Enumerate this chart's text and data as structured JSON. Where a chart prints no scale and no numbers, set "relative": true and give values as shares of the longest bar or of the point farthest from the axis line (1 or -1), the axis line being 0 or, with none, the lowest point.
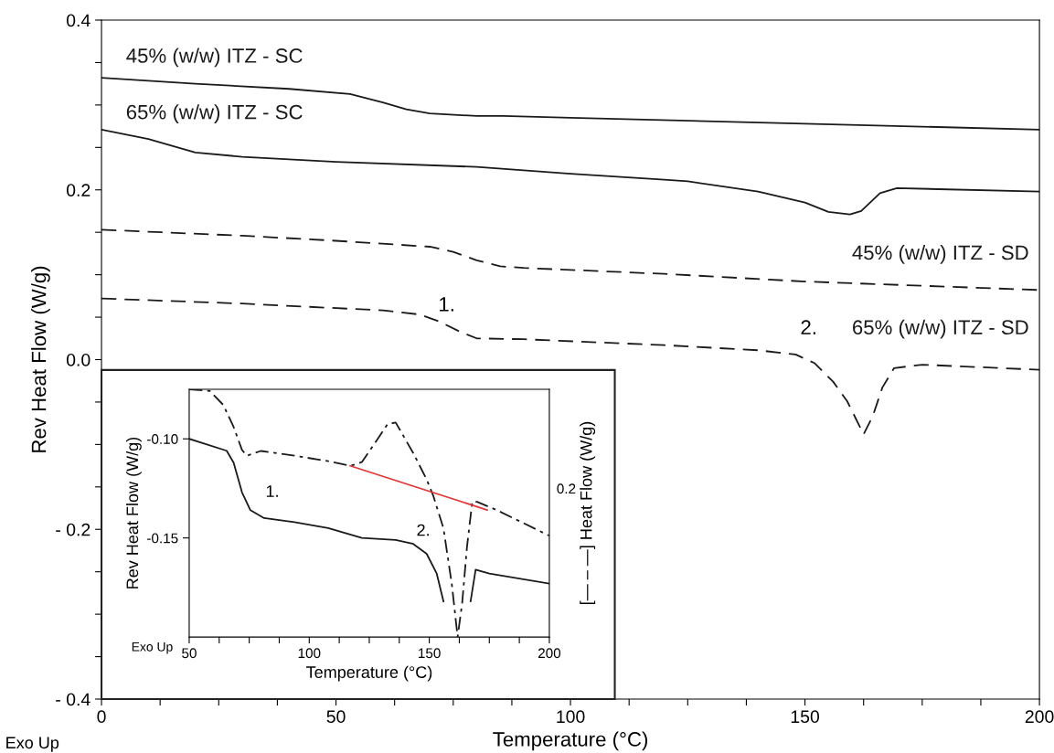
{
  "chart_data": [
    {
      "type": "line",
      "xlabel": "Temperature (°C)",
      "ylabel": "Rev Heat Flow (W/g)",
      "xlim": [
        0,
        200
      ],
      "ylim": [
        -0.4,
        0.4
      ],
      "xticks": [
        0,
        {
          "value": 12.5,
          "label": null
        },
        {
          "value": 25,
          "label": null
        },
        {
          "value": 37.5,
          "label": null
        },
        50,
        {
          "value": 62.5,
          "label": null
        },
        {
          "value": 75,
          "label": null
        },
        {
          "value": 87.5,
          "label": null
        },
        100,
        {
          "value": 112.5,
          "label": null
        },
        {
          "value": 125,
          "label": null
        },
        {
          "value": 137.5,
          "label": null
        },
        150,
        {
          "value": 162.5,
          "label": null
        },
        {
          "value": 175,
          "label": null
        },
        {
          "value": 187.5,
          "label": null
        },
        200
      ],
      "yticks": [
        {
          "value": -0.4,
          "label": "- 0.4"
        },
        {
          "value": -0.35,
          "label": null
        },
        {
          "value": -0.3,
          "label": null
        },
        {
          "value": -0.25,
          "label": null
        },
        {
          "value": -0.2,
          "label": "- 0.2"
        },
        {
          "value": -0.15,
          "label": null
        },
        {
          "value": -0.1,
          "label": null
        },
        {
          "value": -0.05,
          "label": null
        },
        {
          "value": 0,
          "label": "0.0"
        },
        {
          "value": 0.05,
          "label": null
        },
        {
          "value": 0.1,
          "label": null
        },
        {
          "value": 0.15,
          "label": null
        },
        0.2,
        {
          "value": 0.25,
          "label": null
        },
        {
          "value": 0.3,
          "label": null
        },
        {
          "value": 0.35,
          "label": null
        },
        0.4
      ],
      "series": [
        {
          "name": "45% (w/w) ITZ - SC",
          "color": "#1a1a1a",
          "line_style": "solid",
          "x": [
            0,
            20,
            40,
            53,
            60,
            65,
            70,
            80,
            85.6,
            100,
            150,
            200
          ],
          "values": [
            0.332,
            0.325,
            0.319,
            0.313,
            0.303,
            0.295,
            0.29,
            0.287,
            0.287,
            0.285,
            0.278,
            0.271
          ]
        },
        {
          "name": "65% (w/w) ITZ - SC",
          "color": "#1a1a1a",
          "line_style": "solid",
          "x": [
            0,
            10,
            20,
            30,
            50,
            80,
            100,
            120,
            125,
            140,
            150,
            155,
            159.6,
            162,
            166,
            169.6,
            200
          ],
          "values": [
            0.271,
            0.26,
            0.244,
            0.239,
            0.233,
            0.227,
            0.219,
            0.212,
            0.21,
            0.198,
            0.185,
            0.174,
            0.171,
            0.175,
            0.196,
            0.202,
            0.198
          ]
        },
        {
          "name": "45% (w/w) ITZ - SD",
          "color": "#1a1a1a",
          "line_style": "dashed",
          "x": [
            0,
            30,
            50,
            70,
            75,
            80,
            85,
            90,
            120,
            150,
            200
          ],
          "values": [
            0.153,
            0.146,
            0.14,
            0.133,
            0.127,
            0.117,
            0.11,
            0.108,
            0.101,
            0.092,
            0.082
          ]
        },
        {
          "name": "65% (w/w) ITZ - SD",
          "color": "#1a1a1a",
          "line_style": "dashed",
          "x": [
            0,
            30,
            60,
            68,
            72,
            76,
            80,
            90,
            120,
            140,
            148,
            152,
            156,
            159,
            162.5,
            164.5,
            166.5,
            169,
            175,
            200
          ],
          "values": [
            0.072,
            0.066,
            0.058,
            0.053,
            0.045,
            0.034,
            0.025,
            0.024,
            0.017,
            0.011,
            0.006,
            -0.004,
            -0.026,
            -0.049,
            -0.088,
            -0.066,
            -0.033,
            -0.01,
            -0.006,
            -0.012
          ]
        }
      ],
      "annotations": [
        "1.",
        "2.",
        "Exo Up"
      ]
    },
    {
      "type": "line",
      "xlabel": "Temperature (°C)",
      "ylabel": "Rev Heat Flow (W/g)",
      "xlim": [
        50,
        200
      ],
      "ylim": [
        -0.2,
        -0.075
      ],
      "xticks": [
        50,
        {
          "value": 62.5,
          "label": null
        },
        {
          "value": 75,
          "label": null
        },
        {
          "value": 87.5,
          "label": null
        },
        100,
        {
          "value": 112.5,
          "label": null
        },
        {
          "value": 125,
          "label": null
        },
        {
          "value": 137.5,
          "label": null
        },
        150,
        {
          "value": 162.5,
          "label": null
        },
        {
          "value": 175,
          "label": null
        },
        {
          "value": 187.5,
          "label": null
        },
        200
      ],
      "yticks": [
        {
          "value": -0.1,
          "label": "-0.10"
        },
        {
          "value": -0.15,
          "label": "-0.15"
        }
      ],
      "series": [
        {
          "color": "#1a1a1a",
          "line_style": "solid",
          "x": [
            50,
            65.6,
            68.5,
            72,
            75.5,
            81.2,
            93.8,
            107.9,
            121.9,
            136,
            143.3,
            148.9,
            153.1,
            155.9,
            null,
            167.2,
            169.3,
            175,
            200
          ],
          "values": [
            -0.1,
            -0.106,
            -0.112,
            -0.127,
            -0.136,
            -0.14,
            -0.142,
            -0.145,
            -0.15,
            -0.151,
            -0.153,
            -0.158,
            -0.168,
            -0.182,
            null,
            -0.182,
            -0.166,
            -0.168,
            -0.173
          ]
        }
      ],
      "annotations": [
        "1.",
        "2.",
        "Exo Up"
      ]
    },
    {
      "type": "line",
      "relative": true,
      "y2label": "[— – —] Heat Flow (W/g)",
      "xlim": [
        50,
        200
      ],
      "series": [
        {
          "color": "#1a1a1a",
          "line_style": "dashdot",
          "x": [
            50,
            58.6,
            64.2,
            68.5,
            72,
            74.1,
            79.8,
            93.8,
            107.9,
            117.1,
            121.9,
            127.7,
            132.6,
            136,
            143.3,
            148.9,
            151.6,
            155.9,
            159.4,
            161.8,
            163.7,
            165.7,
            167.9,
            169.9,
            178,
            200
          ],
          "values": [
            1.0,
            0.993,
            0.937,
            0.848,
            0.755,
            0.732,
            0.751,
            0.732,
            0.71,
            0.691,
            0.706,
            0.788,
            0.859,
            0.866,
            0.743,
            0.636,
            0.572,
            0.439,
            0.212,
            0,
            0.138,
            0.364,
            0.546,
            0.546,
            0.513,
            0.409
          ]
        },
        {
          "color": "#e03a3a",
          "line_style": "solid",
          "x": [
            117.1,
            174.1
          ],
          "values": [
            0.691,
            0.513
          ]
        }
      ],
      "annotations": [
        "0.2"
      ]
    }
  ]
}
